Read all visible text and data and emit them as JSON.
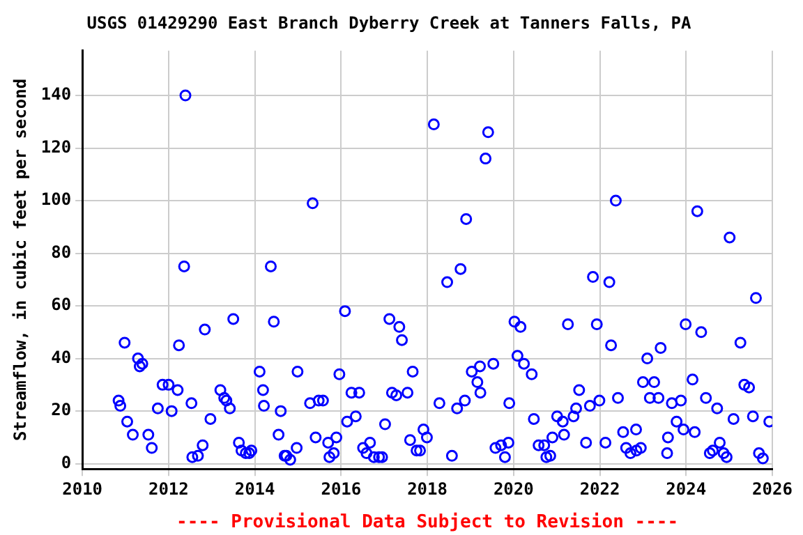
{
  "chart_data": {
    "type": "scatter",
    "title": "USGS 01429290 East Branch Dyberry Creek at Tanners Falls, PA",
    "ylabel": "Streamflow, in cubic feet per second",
    "annotations": [
      "---- Provisional Data Subject to Revision ----"
    ],
    "xlim": [
      2010,
      2026
    ],
    "xticks": [
      2010,
      2012,
      2014,
      2016,
      2018,
      2020,
      2022,
      2024,
      2026
    ],
    "ylim": [
      -2,
      157
    ],
    "yticks": [
      0,
      20,
      40,
      60,
      80,
      100,
      120,
      140
    ],
    "grid": true,
    "legend": false,
    "marker": "circle",
    "series": [
      {
        "color": "#0000ff",
        "x": [
          2010.84,
          2010.88,
          2010.98,
          2011.04,
          2011.17,
          2011.29,
          2011.33,
          2011.39,
          2011.53,
          2011.61,
          2011.75,
          2011.86,
          2012.0,
          2012.07,
          2012.21,
          2012.24,
          2012.36,
          2012.39,
          2012.53,
          2012.55,
          2012.68,
          2012.79,
          2012.84,
          2012.97,
          2013.2,
          2013.29,
          2013.34,
          2013.42,
          2013.5,
          2013.63,
          2013.69,
          2013.79,
          2013.87,
          2013.92,
          2014.11,
          2014.19,
          2014.21,
          2014.37,
          2014.44,
          2014.55,
          2014.6,
          2014.69,
          2014.73,
          2014.82,
          2014.97,
          2014.99,
          2015.28,
          2015.34,
          2015.41,
          2015.48,
          2015.58,
          2015.7,
          2015.73,
          2015.83,
          2015.89,
          2015.96,
          2016.09,
          2016.14,
          2016.24,
          2016.34,
          2016.42,
          2016.51,
          2016.59,
          2016.67,
          2016.76,
          2016.88,
          2016.95,
          2017.02,
          2017.12,
          2017.18,
          2017.28,
          2017.35,
          2017.41,
          2017.54,
          2017.6,
          2017.66,
          2017.75,
          2017.83,
          2017.91,
          2017.99,
          2018.15,
          2018.28,
          2018.46,
          2018.57,
          2018.69,
          2018.77,
          2018.87,
          2018.9,
          2019.03,
          2019.16,
          2019.22,
          2019.23,
          2019.35,
          2019.41,
          2019.53,
          2019.58,
          2019.71,
          2019.8,
          2019.88,
          2019.9,
          2020.02,
          2020.09,
          2020.16,
          2020.24,
          2020.42,
          2020.47,
          2020.58,
          2020.71,
          2020.76,
          2020.85,
          2020.9,
          2021.01,
          2021.14,
          2021.17,
          2021.26,
          2021.39,
          2021.45,
          2021.52,
          2021.68,
          2021.77,
          2021.84,
          2021.93,
          2021.99,
          2022.13,
          2022.22,
          2022.26,
          2022.37,
          2022.42,
          2022.54,
          2022.61,
          2022.71,
          2022.84,
          2022.85,
          2022.95,
          2023.0,
          2023.1,
          2023.16,
          2023.26,
          2023.36,
          2023.41,
          2023.56,
          2023.58,
          2023.67,
          2023.78,
          2023.88,
          2023.94,
          2023.99,
          2024.15,
          2024.2,
          2024.26,
          2024.35,
          2024.46,
          2024.55,
          2024.62,
          2024.72,
          2024.78,
          2024.87,
          2024.94,
          2025.01,
          2025.1,
          2025.26,
          2025.35,
          2025.46,
          2025.55,
          2025.62,
          2025.69,
          2025.78,
          2025.93
        ],
        "values": [
          24,
          22,
          46,
          16,
          11,
          40,
          37,
          38,
          11,
          6,
          21,
          30,
          30,
          20,
          28,
          45,
          75,
          140,
          23,
          2.5,
          3,
          7,
          51,
          17,
          28,
          25,
          24,
          21,
          55,
          8,
          5,
          4,
          4,
          5,
          35,
          28,
          22,
          75,
          54,
          11,
          20,
          3,
          3,
          1.5,
          6,
          35,
          23,
          99,
          10,
          24,
          24,
          8,
          2.5,
          4,
          10,
          34,
          58,
          16,
          27,
          18,
          27,
          6,
          4,
          8,
          2.5,
          2.5,
          2.5,
          15,
          55,
          27,
          26,
          52,
          47,
          27,
          9,
          35,
          5,
          5,
          13,
          10,
          129,
          23,
          69,
          3,
          21,
          74,
          24,
          93,
          35,
          31,
          37,
          27,
          116,
          126,
          38,
          6,
          7,
          2.5,
          8,
          23,
          54,
          41,
          52,
          38,
          34,
          17,
          7,
          7,
          2.5,
          3,
          10,
          18,
          16,
          11,
          53,
          18,
          21,
          28,
          8,
          22,
          71,
          53,
          24,
          8,
          69,
          45,
          100,
          25,
          12,
          6,
          4,
          13,
          5,
          6,
          31,
          40,
          25,
          31,
          25,
          44,
          4,
          10,
          23,
          16,
          24,
          13,
          53,
          32,
          12,
          96,
          50,
          25,
          4,
          5,
          21,
          8,
          4,
          2.5,
          86,
          17,
          46,
          30,
          29,
          18,
          63,
          4,
          2,
          16
        ]
      }
    ]
  }
}
